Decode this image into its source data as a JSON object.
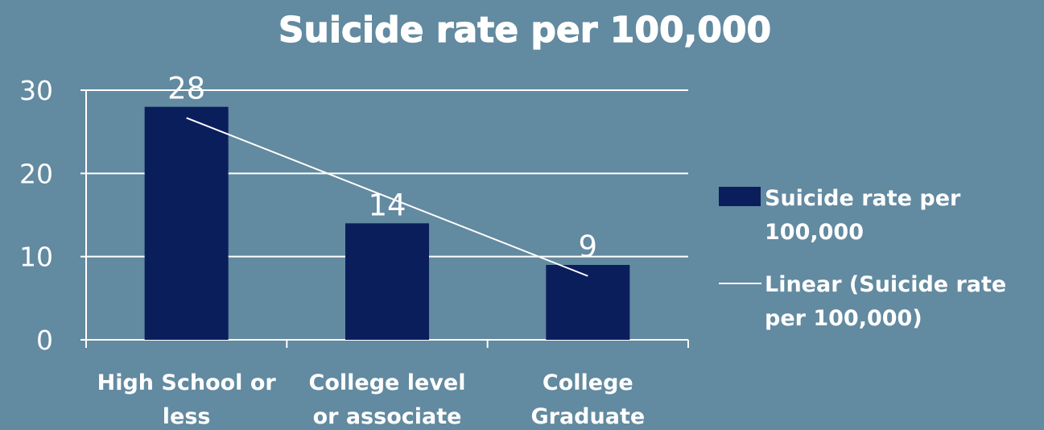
{
  "chart_data": {
    "type": "bar",
    "title": "Suicide rate per 100,000",
    "categories": [
      [
        "High School or",
        "less"
      ],
      [
        "College level",
        "or associate"
      ],
      [
        "College",
        "Graduate"
      ]
    ],
    "series": [
      {
        "name": "Suicide rate per 100,000",
        "values": [
          28,
          14,
          9
        ],
        "data_labels": [
          "28",
          "14",
          "9"
        ]
      }
    ],
    "trendline": {
      "type": "linear",
      "name": "Linear (Suicide rate per 100,000)",
      "values": [
        26.67,
        17.17,
        7.67
      ]
    },
    "legend": {
      "position": "right",
      "entries": [
        [
          "Suicide rate per",
          "100,000"
        ],
        [
          "Linear (Suicide rate",
          "per 100,000)"
        ]
      ]
    },
    "y_ticks": [
      "0",
      "10",
      "20",
      "30"
    ],
    "ylim": [
      0,
      30
    ],
    "grid": true,
    "xlabel": "",
    "ylabel": "",
    "colors": {
      "background": "#628aa0",
      "bar": "#0b1e5c",
      "grid": "#ffffff",
      "trendline": "#ffffff",
      "text": "#ffffff"
    }
  }
}
